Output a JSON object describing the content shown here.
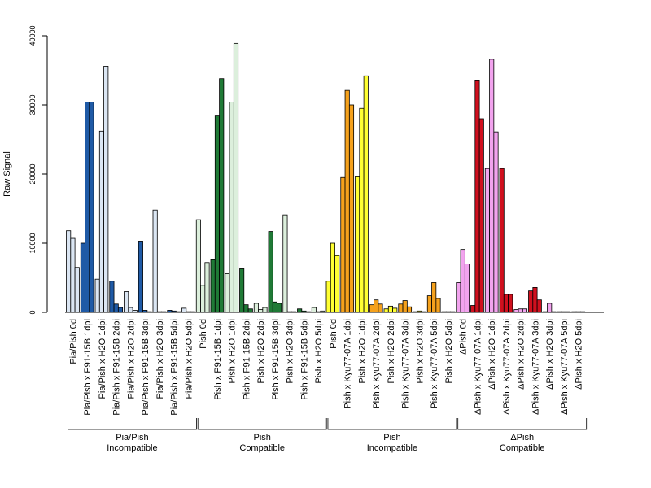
{
  "chart_data": {
    "type": "bar",
    "ylabel": "Raw Signal",
    "xlabel": "",
    "ylim": [
      0,
      40000
    ],
    "y_ticks": [
      0,
      10000,
      20000,
      30000,
      40000
    ],
    "groups": [
      {
        "label_line1": "Pia/Pish",
        "label_line2": "Incompatible",
        "color": "#1f5aa6",
        "light": "#dbe6f3"
      },
      {
        "label_line1": "Pish",
        "label_line2": "Compatible",
        "color": "#1f7a36",
        "light": "#dcefdc"
      },
      {
        "label_line1": "Pish",
        "label_line2": "Incompatible",
        "color": "#f5a11c",
        "light": "#ffff33"
      },
      {
        "label_line1": "ΔPish",
        "label_line2": "Compatible",
        "color": "#d0101e",
        "light": "#f2a3ee"
      }
    ],
    "categories": [
      {
        "label": "Pia/Pish 0d",
        "group": 0,
        "shade": "light",
        "values": [
          11800,
          10700,
          6500
        ]
      },
      {
        "label": "Pia/Pish x P91-15B 1dpi",
        "group": 0,
        "shade": "dark",
        "values": [
          10000,
          30400,
          30400
        ]
      },
      {
        "label": "Pia/Pish x H2O 1dpi",
        "group": 0,
        "shade": "light",
        "values": [
          4800,
          26200,
          35600
        ]
      },
      {
        "label": "Pia/Pish x P91-15B 2dpi",
        "group": 0,
        "shade": "dark",
        "values": [
          4500,
          1200,
          700
        ]
      },
      {
        "label": "Pia/Pish x H2O 2dpi",
        "group": 0,
        "shade": "light",
        "values": [
          3000,
          700,
          300
        ]
      },
      {
        "label": "Pia/Pish x P91-15B 3dpi",
        "group": 0,
        "shade": "dark",
        "values": [
          10300,
          300,
          100
        ]
      },
      {
        "label": "Pia/Pish x H2O 3dpi",
        "group": 0,
        "shade": "light",
        "values": [
          14800,
          100,
          100
        ]
      },
      {
        "label": "Pia/Pish x P91-15B 5dpi",
        "group": 0,
        "shade": "dark",
        "values": [
          300,
          200,
          100
        ]
      },
      {
        "label": "Pia/Pish x H2O 5dpi",
        "group": 0,
        "shade": "light",
        "values": [
          600,
          100,
          100
        ]
      },
      {
        "label": "Pish 0d",
        "group": 1,
        "shade": "light",
        "values": [
          13400,
          3900,
          7200
        ]
      },
      {
        "label": "Pish x P91-15B 1dpi",
        "group": 1,
        "shade": "dark",
        "values": [
          7600,
          28400,
          33800
        ]
      },
      {
        "label": "Pish x H2O 1dpi",
        "group": 1,
        "shade": "light",
        "values": [
          5600,
          30400,
          38900
        ]
      },
      {
        "label": "Pish x P91-15B 2dpi",
        "group": 1,
        "shade": "dark",
        "values": [
          6300,
          1100,
          500
        ]
      },
      {
        "label": "Pish x H2O 2dpi",
        "group": 1,
        "shade": "light",
        "values": [
          1300,
          400,
          700
        ]
      },
      {
        "label": "Pish x P91-15B 3dpi",
        "group": 1,
        "shade": "dark",
        "values": [
          11700,
          1500,
          1300
        ]
      },
      {
        "label": "Pish x H2O 3dpi",
        "group": 1,
        "shade": "light",
        "values": [
          14100,
          100,
          100
        ]
      },
      {
        "label": "Pish x P91-15B 5dpi",
        "group": 1,
        "shade": "dark",
        "values": [
          500,
          200,
          100
        ]
      },
      {
        "label": "Pish x H2O 5dpi",
        "group": 1,
        "shade": "light",
        "values": [
          700,
          100,
          200
        ]
      },
      {
        "label": "Pish 0d",
        "group": 2,
        "shade": "light",
        "values": [
          4500,
          10000,
          8200
        ]
      },
      {
        "label": "Pish x Kyu77-07A 1dpi",
        "group": 2,
        "shade": "dark",
        "values": [
          19500,
          32100,
          30000
        ]
      },
      {
        "label": "Pish x H2O 1dpi",
        "group": 2,
        "shade": "light",
        "values": [
          19600,
          29500,
          34200
        ]
      },
      {
        "label": "Pish x Kyu77-07A 2dpi",
        "group": 2,
        "shade": "dark",
        "values": [
          1100,
          1800,
          1200
        ]
      },
      {
        "label": "Pish x H2O 2dpi",
        "group": 2,
        "shade": "light",
        "values": [
          500,
          900,
          600
        ]
      },
      {
        "label": "Pish x Kyu77-07A 3dpi",
        "group": 2,
        "shade": "dark",
        "values": [
          1200,
          1700,
          800
        ]
      },
      {
        "label": "Pish x H2O 3dpi",
        "group": 2,
        "shade": "light",
        "values": [
          100,
          200,
          100
        ]
      },
      {
        "label": "Pish x Kyu77-07A 5dpi",
        "group": 2,
        "shade": "dark",
        "values": [
          2400,
          4300,
          2000
        ]
      },
      {
        "label": "Pish x H2O 5dpi",
        "group": 2,
        "shade": "light",
        "values": [
          100,
          100,
          100
        ]
      },
      {
        "label": "ΔPish 0d",
        "group": 3,
        "shade": "light",
        "values": [
          4300,
          9100,
          7000
        ]
      },
      {
        "label": "ΔPish x Kyu77-07A 1dpi",
        "group": 3,
        "shade": "dark",
        "values": [
          1000,
          33600,
          28000
        ]
      },
      {
        "label": "ΔPish x H2O 1dpi",
        "group": 3,
        "shade": "light",
        "values": [
          20800,
          36600,
          26100
        ]
      },
      {
        "label": "ΔPish x Kyu77-07A 2dpi",
        "group": 3,
        "shade": "dark",
        "values": [
          20800,
          2600,
          2600
        ]
      },
      {
        "label": "ΔPish x H2O 2dpi",
        "group": 3,
        "shade": "light",
        "values": [
          400,
          500,
          500
        ]
      },
      {
        "label": "ΔPish x Kyu77-07A 3dpi",
        "group": 3,
        "shade": "dark",
        "values": [
          3100,
          3600,
          1800
        ]
      },
      {
        "label": "ΔPish x H2O 3dpi",
        "group": 3,
        "shade": "light",
        "values": [
          100,
          1300,
          100
        ]
      },
      {
        "label": "ΔPish x Kyu77-07A 5dpi",
        "group": 3,
        "shade": "dark",
        "values": [
          100,
          100,
          100
        ]
      },
      {
        "label": "ΔPish x H2O 5dpi",
        "group": 3,
        "shade": "light",
        "values": [
          100,
          100,
          100
        ]
      }
    ],
    "grid": false,
    "legend": "none"
  }
}
